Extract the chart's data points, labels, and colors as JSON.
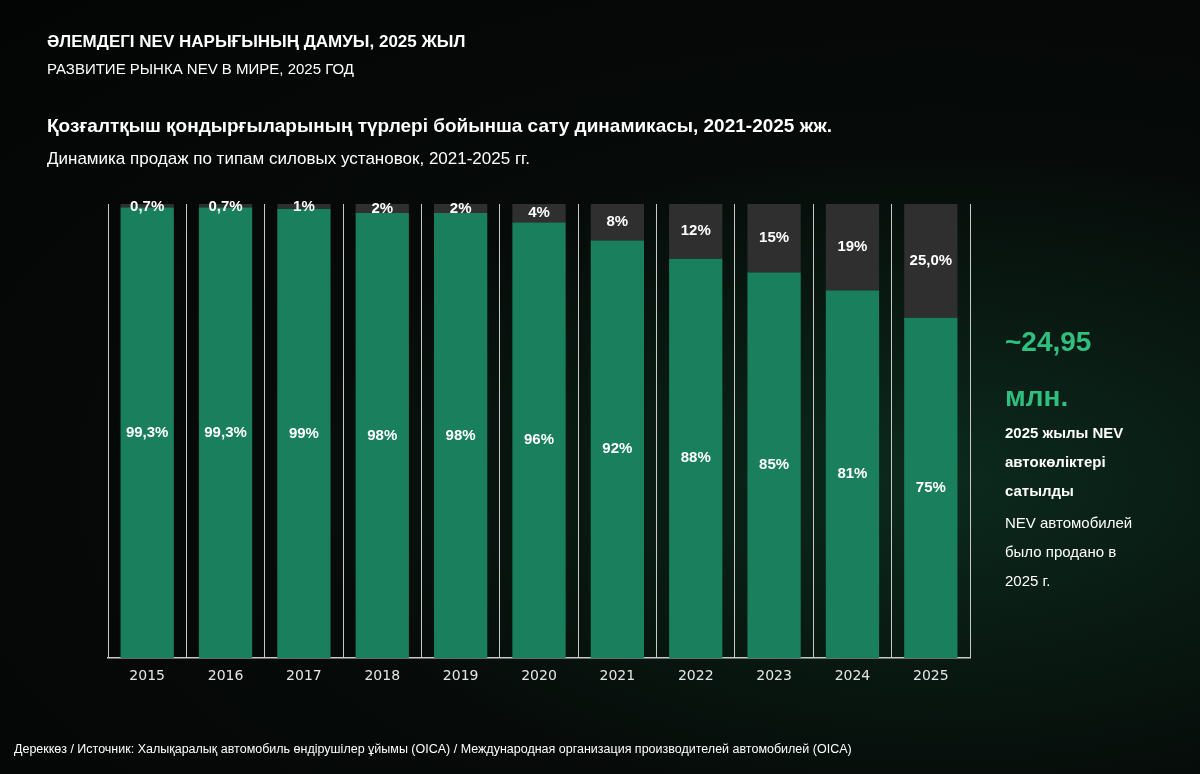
{
  "chart_data": {
    "type": "bar",
    "title": "ӘЛЕМДЕГІ NEV НАРЫҒЫНЫҢ ДАМУЫ, 2025 ЖЫЛ",
    "subtitle": "РАЗВИТИЕ РЫНКА NEV В МИРЕ, 2025 ГОД",
    "categories": [
      "2015",
      "2016",
      "2017",
      "2018",
      "2019",
      "2020",
      "2021",
      "2022",
      "2023",
      "2024",
      "2025"
    ],
    "series": [
      {
        "color": "#1a7f5c",
        "values": [
          99.3,
          99.3,
          99,
          98,
          98,
          96,
          92,
          88,
          85,
          81,
          75
        ],
        "value_labels": [
          "99,3%",
          "99,3%",
          "99%",
          "98%",
          "98%",
          "96%",
          "92%",
          "88%",
          "85%",
          "81%",
          "75%"
        ]
      },
      {
        "color": "#2f2f2f",
        "values": [
          0.7,
          0.7,
          1,
          2,
          2,
          4,
          8,
          12,
          15,
          19,
          25.0
        ],
        "value_labels": [
          "0,7%",
          "0,7%",
          "1%",
          "2%",
          "2%",
          "4%",
          "8%",
          "12%",
          "15%",
          "19%",
          "25,0%"
        ]
      }
    ],
    "stacked": true,
    "ylim": [
      0,
      100
    ],
    "grid": "x",
    "tick_labels": "x",
    "annotations": [
      "Қозғалтқыш қондырғыларының түрлері бойынша сату динамикасы, 2021-2025 жж.",
      "Динамика продаж по типам силовых установок, 2021-2025 гг.",
      "~24,95 млн.",
      "2025 жылы NEV автокөліктері сатылды",
      "NEV автомобилей было продано в 2025 г.",
      "Дереккөз / Источник: Халықаралық автомобиль өндірушілер ұйымы (OICA) / Международная организация производителей автомобилей (OICA)"
    ]
  }
}
